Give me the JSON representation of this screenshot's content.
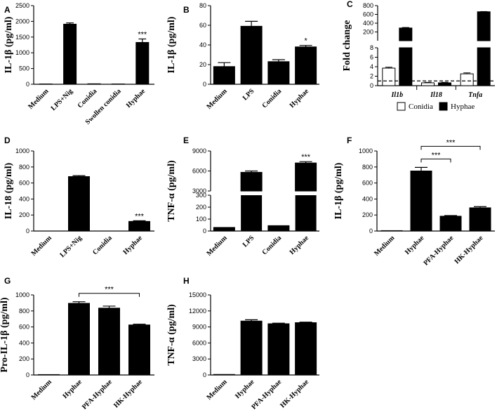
{
  "chart_data": [
    {
      "panel": "A",
      "type": "bar",
      "ylabel": "IL-1β (pg/ml)",
      "ylim": [
        0,
        2500
      ],
      "yticks": [
        0,
        500,
        1000,
        1500,
        2000,
        2500
      ],
      "categories": [
        "Medium",
        "LPS+Nig",
        "Conidia",
        "Swollen conidia",
        "Hyphae"
      ],
      "values": [
        10,
        1910,
        15,
        10,
        1330
      ],
      "errors": [
        0,
        40,
        0,
        0,
        110
      ],
      "significance": [
        "",
        "",
        "",
        "",
        "***"
      ]
    },
    {
      "panel": "B",
      "type": "bar",
      "ylabel": "IL-1β (pg/ml)",
      "ylim": [
        0,
        80
      ],
      "yticks": [
        0,
        20,
        40,
        60,
        80
      ],
      "categories": [
        "Medium",
        "LPS",
        "Conidia",
        "Hyphae"
      ],
      "values": [
        18,
        59,
        23,
        38
      ],
      "errors": [
        4,
        5,
        2,
        1.5
      ],
      "significance": [
        "",
        "",
        "",
        "*"
      ]
    },
    {
      "panel": "C",
      "type": "bar",
      "ylabel": "Fold change",
      "yticks_top": [
        200,
        400,
        600,
        800
      ],
      "yticks_bottom": [
        0,
        2,
        4,
        6,
        8
      ],
      "categories": [
        "Il1b",
        "Il18",
        "Tnfa"
      ],
      "series": [
        {
          "name": "Conidia",
          "color": "#ffffff",
          "values": [
            3.7,
            0.6,
            2.5
          ],
          "errors": [
            0.2,
            0.1,
            0.2
          ]
        },
        {
          "name": "Hyphae",
          "color": "#000000",
          "values": [
            290,
            0.6,
            660
          ],
          "errors": [
            12,
            0.1,
            5
          ]
        }
      ],
      "reference_line": 1,
      "legend_position": "bottom"
    },
    {
      "panel": "D",
      "type": "bar",
      "ylabel": "IL-18 (pg/ml)",
      "ylim": [
        0,
        1000
      ],
      "yticks": [
        0,
        200,
        400,
        600,
        800,
        1000
      ],
      "categories": [
        "Medium",
        "LPS+Nig",
        "Conidia",
        "Hyphae"
      ],
      "values": [
        0,
        680,
        0,
        120
      ],
      "errors": [
        0,
        12,
        0,
        8
      ],
      "significance": [
        "",
        "",
        "",
        "***"
      ]
    },
    {
      "panel": "E",
      "type": "bar",
      "ylabel": "TNF-α (pg/ml)",
      "yticks_top": [
        3000,
        6000,
        9000
      ],
      "yticks_bottom": [
        0,
        100,
        200,
        300
      ],
      "categories": [
        "Medium",
        "LPS",
        "Conidia",
        "Hyphae"
      ],
      "values": [
        30,
        5800,
        45,
        7200
      ],
      "errors": [
        0,
        200,
        0,
        200
      ],
      "significance": [
        "",
        "",
        "",
        "***"
      ]
    },
    {
      "panel": "F",
      "type": "bar",
      "ylabel": "IL-1β (pg/ml)",
      "ylim": [
        0,
        1000
      ],
      "yticks": [
        0,
        200,
        400,
        600,
        800,
        1000
      ],
      "categories": [
        "Medium",
        "Hyphae",
        "PFA-Hyphae",
        "HK-Hyphae"
      ],
      "values": [
        5,
        750,
        185,
        290
      ],
      "errors": [
        0,
        45,
        8,
        15
      ],
      "brackets": [
        {
          "from": 1,
          "to": 2,
          "label": "***"
        },
        {
          "from": 1,
          "to": 3,
          "label": "***"
        }
      ]
    },
    {
      "panel": "G",
      "type": "bar",
      "ylabel": "Pro-IL-1β (pg/ml)",
      "ylim": [
        0,
        1000
      ],
      "yticks": [
        0,
        200,
        400,
        600,
        800,
        1000
      ],
      "categories": [
        "Medium",
        "Hyphae",
        "PFA-Hyphae",
        "HK-Hyphae"
      ],
      "values": [
        5,
        895,
        835,
        625
      ],
      "errors": [
        0,
        20,
        25,
        10
      ],
      "brackets": [
        {
          "from": 1,
          "to": 3,
          "label": "***"
        }
      ]
    },
    {
      "panel": "H",
      "type": "bar",
      "ylabel": "TNF-α (pg/ml)",
      "ylim": [
        0,
        15000
      ],
      "yticks": [
        0,
        3000,
        6000,
        9000,
        12000,
        15000
      ],
      "categories": [
        "Medium",
        "Hyphae",
        "PFA-Hyphae",
        "HK-Hyphae"
      ],
      "values": [
        100,
        10100,
        9600,
        9800
      ],
      "errors": [
        0,
        250,
        100,
        100
      ]
    }
  ]
}
